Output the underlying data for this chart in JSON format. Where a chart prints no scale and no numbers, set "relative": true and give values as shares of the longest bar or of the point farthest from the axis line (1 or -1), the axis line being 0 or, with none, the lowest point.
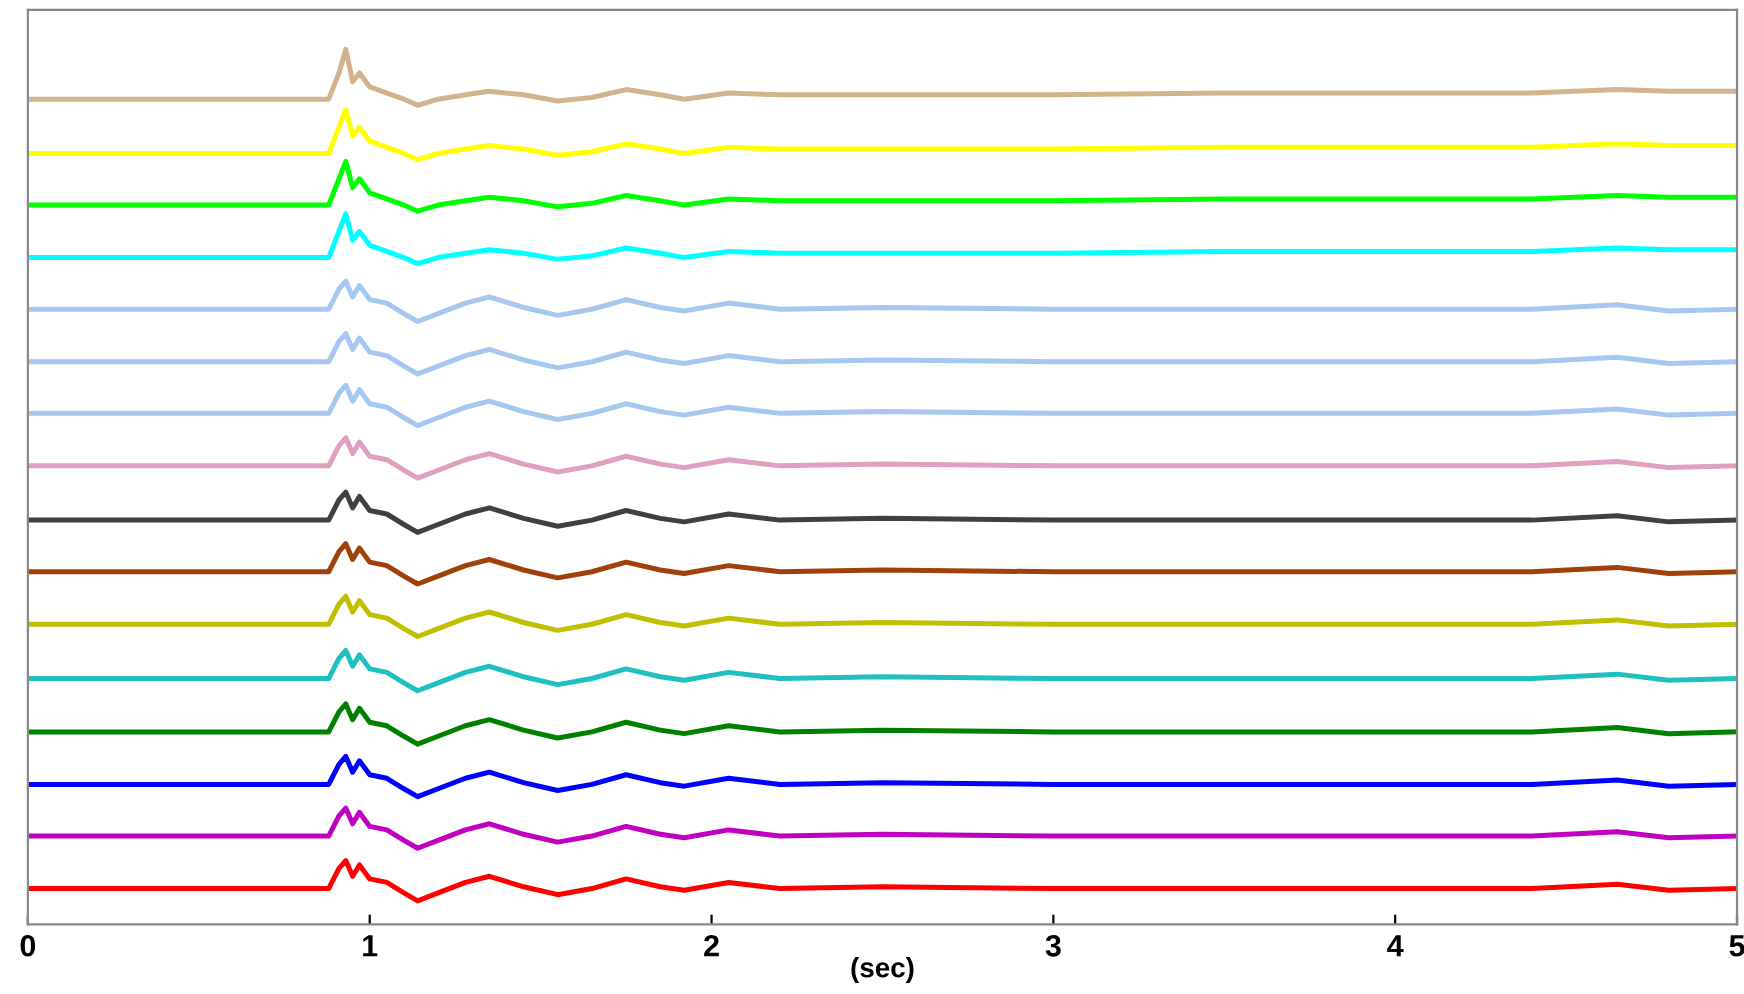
{
  "chart_data": {
    "type": "line",
    "relative": true,
    "xlabel": "(sec)",
    "xlim": [
      0,
      5
    ],
    "xticks": [
      0,
      1,
      2,
      3,
      4,
      5
    ],
    "tick_labels": "x",
    "line_style": "solid",
    "marker": "none",
    "x": [
      0,
      0.5,
      0.88,
      0.91,
      0.93,
      0.95,
      0.97,
      1.0,
      1.05,
      1.1,
      1.14,
      1.2,
      1.28,
      1.35,
      1.45,
      1.55,
      1.65,
      1.75,
      1.85,
      1.92,
      2.05,
      2.2,
      2.5,
      3.0,
      3.5,
      4.0,
      4.4,
      4.65,
      4.8,
      5.0
    ],
    "series": [
      {
        "color": "#d2b48c",
        "values": [
          0.943,
          0.943,
          0.943,
          0.973,
          1.0,
          0.963,
          0.973,
          0.957,
          0.95,
          0.943,
          0.936,
          0.943,
          0.948,
          0.952,
          0.948,
          0.941,
          0.945,
          0.954,
          0.948,
          0.943,
          0.95,
          0.948,
          0.948,
          0.948,
          0.95,
          0.95,
          0.95,
          0.954,
          0.952,
          0.952
        ]
      },
      {
        "color": "#ffff00",
        "values": [
          0.881,
          0.881,
          0.881,
          0.911,
          0.931,
          0.901,
          0.911,
          0.895,
          0.888,
          0.881,
          0.874,
          0.881,
          0.886,
          0.89,
          0.886,
          0.879,
          0.883,
          0.892,
          0.886,
          0.881,
          0.888,
          0.886,
          0.886,
          0.886,
          0.888,
          0.888,
          0.888,
          0.892,
          0.89,
          0.89
        ]
      },
      {
        "color": "#00ff00",
        "values": [
          0.822,
          0.822,
          0.822,
          0.852,
          0.872,
          0.842,
          0.852,
          0.836,
          0.829,
          0.822,
          0.815,
          0.822,
          0.827,
          0.831,
          0.827,
          0.82,
          0.824,
          0.833,
          0.827,
          0.822,
          0.829,
          0.827,
          0.827,
          0.827,
          0.829,
          0.829,
          0.829,
          0.833,
          0.831,
          0.831
        ]
      },
      {
        "color": "#00ffff",
        "values": [
          0.762,
          0.762,
          0.762,
          0.792,
          0.812,
          0.782,
          0.792,
          0.776,
          0.769,
          0.762,
          0.755,
          0.762,
          0.767,
          0.771,
          0.767,
          0.76,
          0.764,
          0.773,
          0.767,
          0.762,
          0.769,
          0.767,
          0.767,
          0.767,
          0.769,
          0.769,
          0.769,
          0.773,
          0.771,
          0.771
        ]
      },
      {
        "color": "#a6c8f0",
        "values": [
          0.703,
          0.703,
          0.703,
          0.726,
          0.735,
          0.717,
          0.73,
          0.714,
          0.71,
          0.698,
          0.689,
          0.698,
          0.71,
          0.717,
          0.705,
          0.696,
          0.703,
          0.714,
          0.705,
          0.701,
          0.71,
          0.703,
          0.705,
          0.703,
          0.703,
          0.703,
          0.703,
          0.708,
          0.701,
          0.703
        ]
      },
      {
        "color": "#a6c8f0",
        "values": [
          0.643,
          0.643,
          0.643,
          0.666,
          0.675,
          0.657,
          0.67,
          0.654,
          0.65,
          0.638,
          0.629,
          0.638,
          0.65,
          0.657,
          0.645,
          0.636,
          0.643,
          0.654,
          0.645,
          0.641,
          0.65,
          0.643,
          0.645,
          0.643,
          0.643,
          0.643,
          0.643,
          0.648,
          0.641,
          0.643
        ]
      },
      {
        "color": "#a6c8f0",
        "values": [
          0.584,
          0.584,
          0.584,
          0.607,
          0.616,
          0.598,
          0.611,
          0.595,
          0.591,
          0.579,
          0.57,
          0.579,
          0.591,
          0.598,
          0.586,
          0.577,
          0.584,
          0.595,
          0.586,
          0.582,
          0.591,
          0.584,
          0.586,
          0.584,
          0.584,
          0.584,
          0.584,
          0.589,
          0.582,
          0.584
        ]
      },
      {
        "color": "#e0a0c0",
        "values": [
          0.524,
          0.524,
          0.524,
          0.547,
          0.556,
          0.538,
          0.551,
          0.535,
          0.531,
          0.519,
          0.51,
          0.519,
          0.531,
          0.538,
          0.526,
          0.517,
          0.524,
          0.535,
          0.526,
          0.522,
          0.531,
          0.524,
          0.526,
          0.524,
          0.524,
          0.524,
          0.524,
          0.529,
          0.522,
          0.524
        ]
      },
      {
        "color": "#404040",
        "values": [
          0.462,
          0.462,
          0.462,
          0.485,
          0.494,
          0.476,
          0.489,
          0.473,
          0.469,
          0.457,
          0.448,
          0.457,
          0.469,
          0.476,
          0.464,
          0.455,
          0.462,
          0.473,
          0.464,
          0.46,
          0.469,
          0.462,
          0.464,
          0.462,
          0.462,
          0.462,
          0.462,
          0.467,
          0.46,
          0.462
        ]
      },
      {
        "color": "#a0400a",
        "values": [
          0.403,
          0.403,
          0.403,
          0.426,
          0.435,
          0.417,
          0.43,
          0.414,
          0.41,
          0.398,
          0.389,
          0.398,
          0.41,
          0.417,
          0.405,
          0.396,
          0.403,
          0.414,
          0.405,
          0.401,
          0.41,
          0.403,
          0.405,
          0.403,
          0.403,
          0.403,
          0.403,
          0.408,
          0.401,
          0.403
        ]
      },
      {
        "color": "#c0c000",
        "values": [
          0.343,
          0.343,
          0.343,
          0.366,
          0.375,
          0.357,
          0.37,
          0.354,
          0.35,
          0.338,
          0.329,
          0.338,
          0.35,
          0.357,
          0.345,
          0.336,
          0.343,
          0.354,
          0.345,
          0.341,
          0.35,
          0.343,
          0.345,
          0.343,
          0.343,
          0.343,
          0.343,
          0.348,
          0.341,
          0.343
        ]
      },
      {
        "color": "#20c0c0",
        "values": [
          0.281,
          0.281,
          0.281,
          0.304,
          0.313,
          0.295,
          0.308,
          0.292,
          0.288,
          0.276,
          0.267,
          0.276,
          0.288,
          0.295,
          0.283,
          0.274,
          0.281,
          0.292,
          0.283,
          0.279,
          0.288,
          0.281,
          0.283,
          0.281,
          0.281,
          0.281,
          0.281,
          0.286,
          0.279,
          0.281
        ]
      },
      {
        "color": "#008000",
        "values": [
          0.22,
          0.22,
          0.22,
          0.243,
          0.252,
          0.234,
          0.247,
          0.231,
          0.227,
          0.215,
          0.206,
          0.215,
          0.227,
          0.234,
          0.222,
          0.213,
          0.22,
          0.231,
          0.222,
          0.218,
          0.227,
          0.22,
          0.222,
          0.22,
          0.22,
          0.22,
          0.22,
          0.225,
          0.218,
          0.22
        ]
      },
      {
        "color": "#0000ff",
        "values": [
          0.16,
          0.16,
          0.16,
          0.183,
          0.192,
          0.174,
          0.187,
          0.171,
          0.167,
          0.155,
          0.146,
          0.155,
          0.167,
          0.174,
          0.162,
          0.153,
          0.16,
          0.171,
          0.162,
          0.158,
          0.167,
          0.16,
          0.162,
          0.16,
          0.16,
          0.16,
          0.16,
          0.165,
          0.158,
          0.16
        ]
      },
      {
        "color": "#c000c0",
        "values": [
          0.101,
          0.101,
          0.101,
          0.124,
          0.133,
          0.115,
          0.128,
          0.112,
          0.108,
          0.096,
          0.087,
          0.096,
          0.108,
          0.115,
          0.103,
          0.094,
          0.101,
          0.112,
          0.103,
          0.099,
          0.108,
          0.101,
          0.103,
          0.101,
          0.101,
          0.101,
          0.101,
          0.106,
          0.099,
          0.101
        ]
      },
      {
        "color": "#ff0000",
        "values": [
          0.041,
          0.041,
          0.041,
          0.064,
          0.073,
          0.055,
          0.068,
          0.052,
          0.048,
          0.036,
          0.027,
          0.036,
          0.048,
          0.055,
          0.043,
          0.034,
          0.041,
          0.052,
          0.043,
          0.039,
          0.048,
          0.041,
          0.043,
          0.041,
          0.041,
          0.041,
          0.041,
          0.046,
          0.039,
          0.041
        ]
      }
    ]
  }
}
